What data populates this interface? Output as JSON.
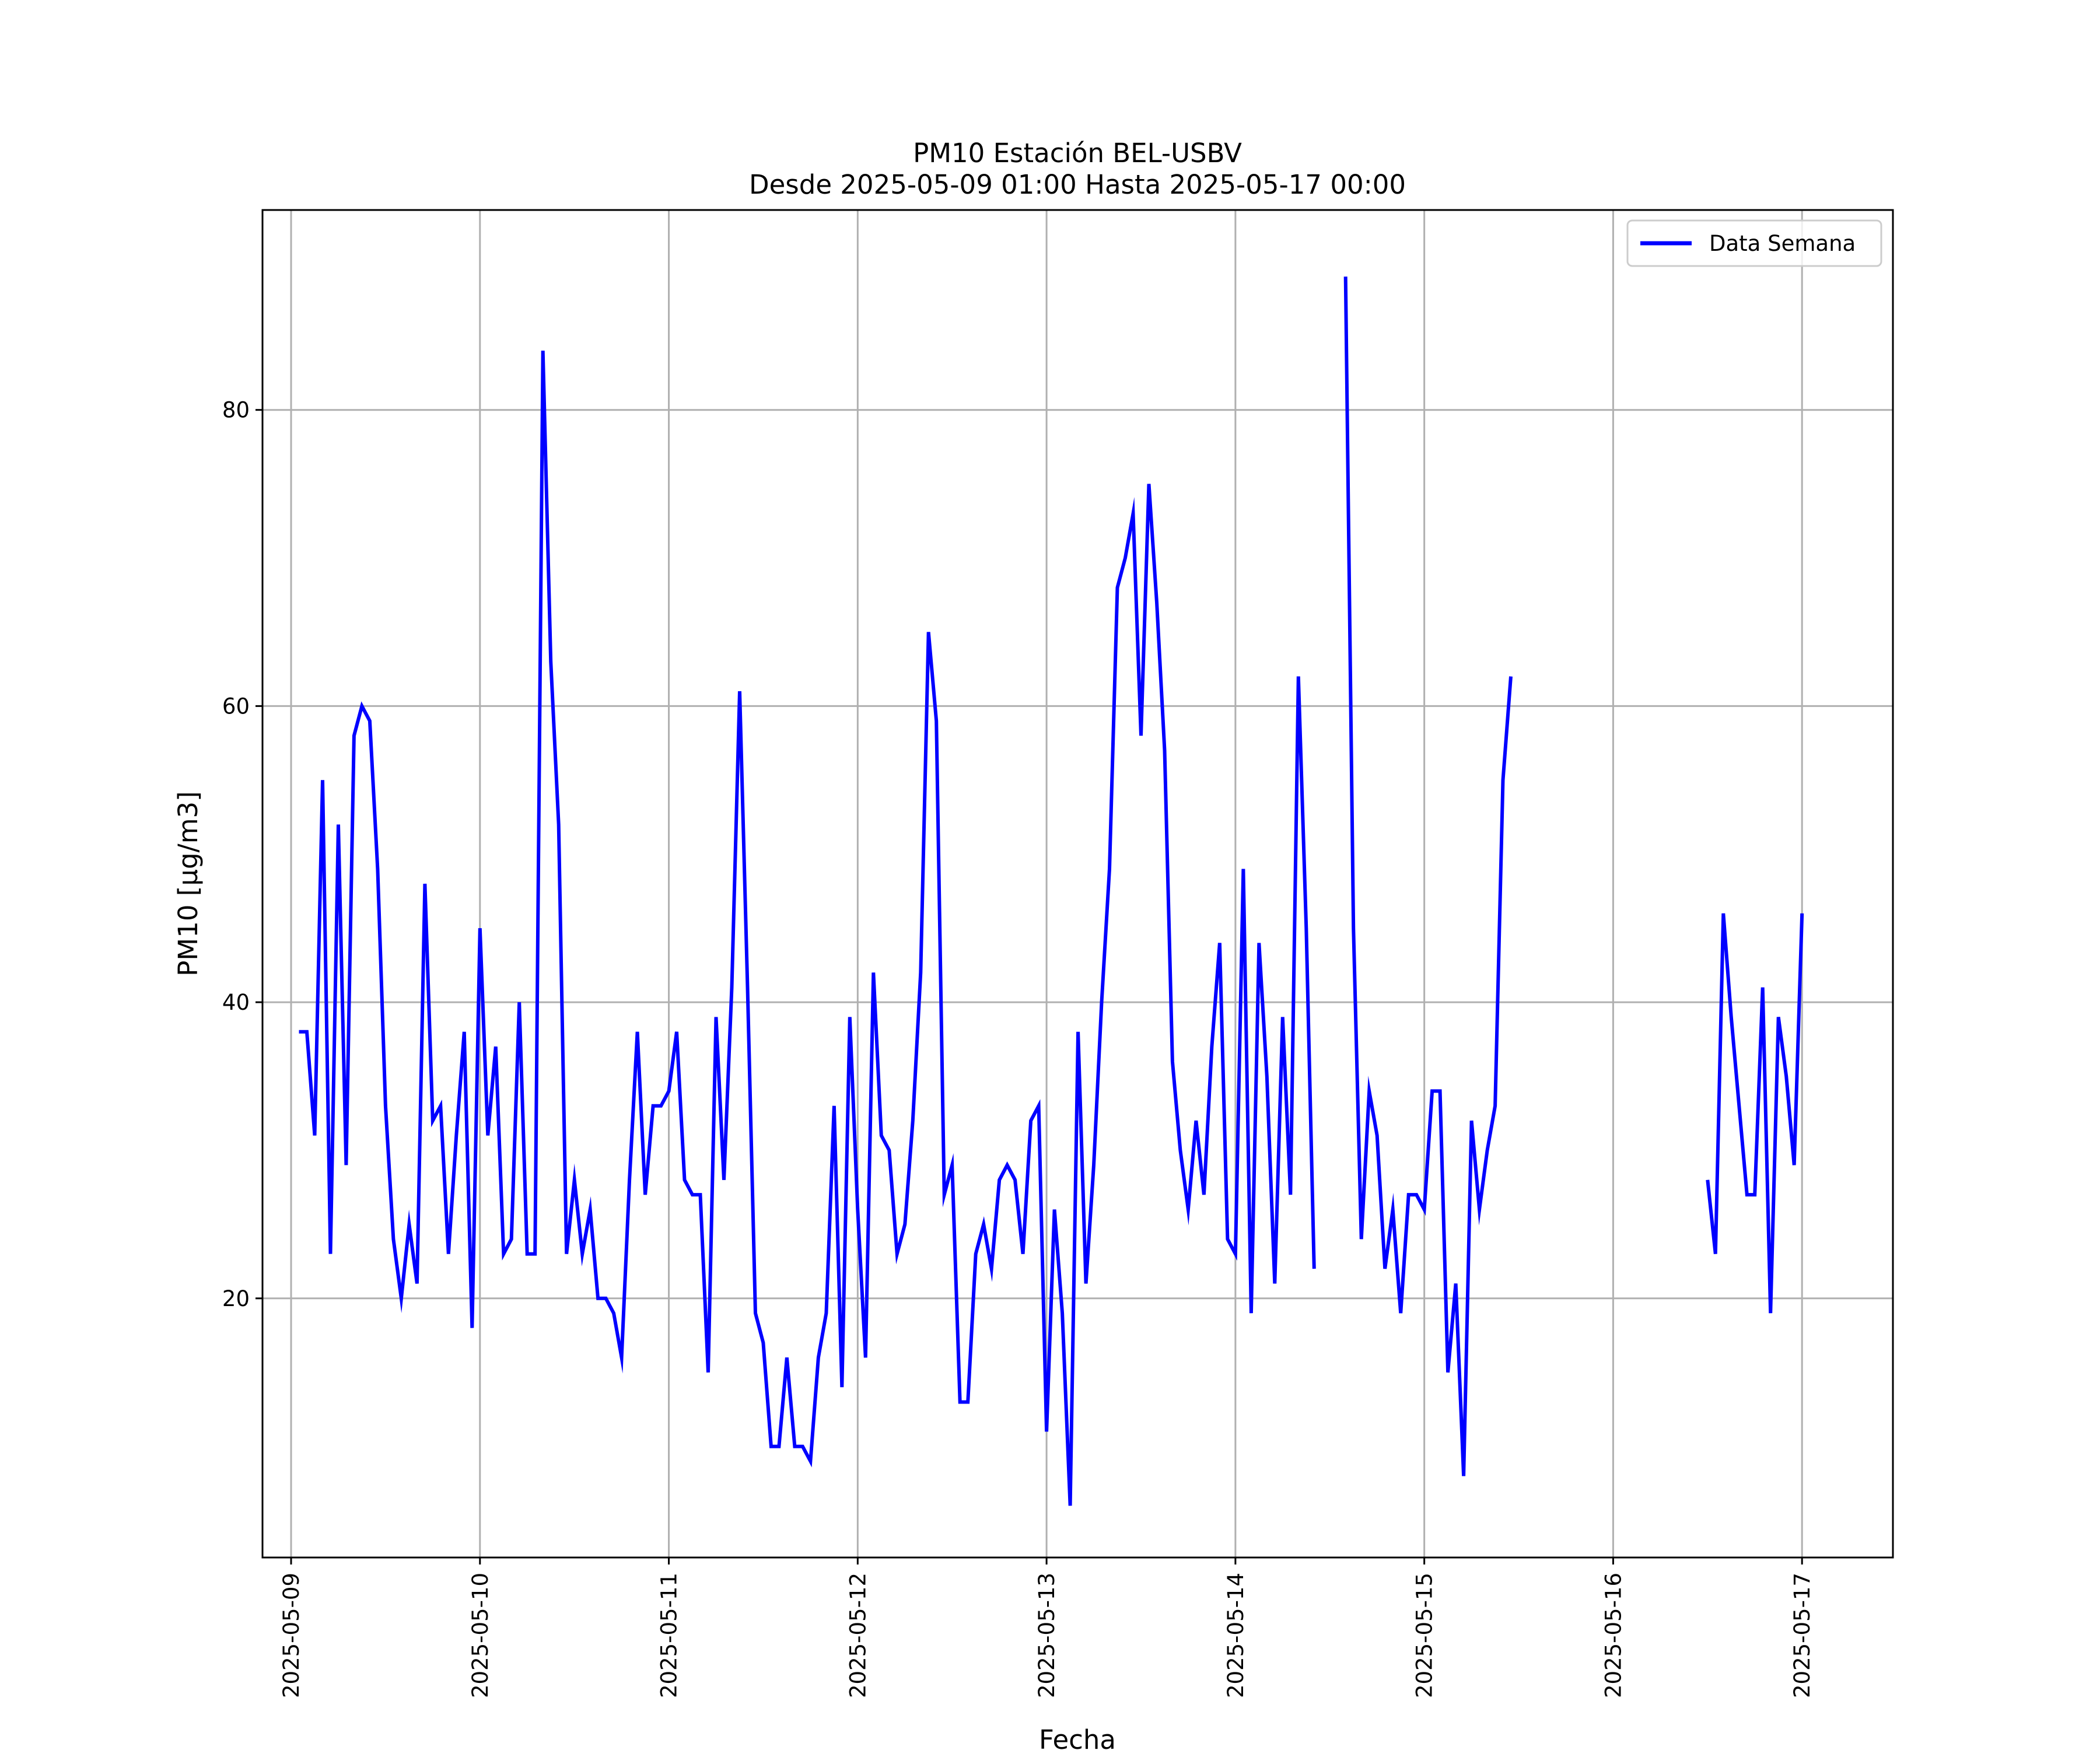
{
  "chart_data": {
    "type": "line",
    "title": "PM10 Estación BEL-USBV",
    "subtitle": "Desde 2025-05-09 01:00 Hasta 2025-05-17 00:00",
    "xlabel": "Fecha",
    "ylabel": "PM10 [μg/m3]",
    "x_ticks": [
      "2025-05-09",
      "2025-05-10",
      "2025-05-11",
      "2025-05-12",
      "2025-05-13",
      "2025-05-14",
      "2025-05-15",
      "2025-05-16",
      "2025-05-17"
    ],
    "xlim": [
      "2025-05-08 20:22",
      "2025-05-17 11:33"
    ],
    "y_ticks": [
      20,
      40,
      60,
      80
    ],
    "ylim": [
      2.5,
      93.5
    ],
    "grid": true,
    "legend_position": "upper right",
    "series": [
      {
        "name": "Data Semana",
        "color": "#0000ff",
        "points": [
          [
            "2025-05-09 01:00",
            38
          ],
          [
            "2025-05-09 02:00",
            38
          ],
          [
            "2025-05-09 03:00",
            31
          ],
          [
            "2025-05-09 04:00",
            55
          ],
          [
            "2025-05-09 05:00",
            23
          ],
          [
            "2025-05-09 06:00",
            52
          ],
          [
            "2025-05-09 07:00",
            29
          ],
          [
            "2025-05-09 08:00",
            58
          ],
          [
            "2025-05-09 09:00",
            60
          ],
          [
            "2025-05-09 10:00",
            59
          ],
          [
            "2025-05-09 11:00",
            49
          ],
          [
            "2025-05-09 12:00",
            33
          ],
          [
            "2025-05-09 13:00",
            24
          ],
          [
            "2025-05-09 14:00",
            20
          ],
          [
            "2025-05-09 15:00",
            25
          ],
          [
            "2025-05-09 16:00",
            21
          ],
          [
            "2025-05-09 17:00",
            48
          ],
          [
            "2025-05-09 18:00",
            32
          ],
          [
            "2025-05-09 19:00",
            33
          ],
          [
            "2025-05-09 20:00",
            23
          ],
          [
            "2025-05-09 21:00",
            31
          ],
          [
            "2025-05-09 22:00",
            38
          ],
          [
            "2025-05-09 23:00",
            18
          ],
          [
            "2025-05-10 00:00",
            45
          ],
          [
            "2025-05-10 01:00",
            31
          ],
          [
            "2025-05-10 02:00",
            37
          ],
          [
            "2025-05-10 03:00",
            23
          ],
          [
            "2025-05-10 04:00",
            24
          ],
          [
            "2025-05-10 05:00",
            40
          ],
          [
            "2025-05-10 06:00",
            23
          ],
          [
            "2025-05-10 07:00",
            23
          ],
          [
            "2025-05-10 08:00",
            84
          ],
          [
            "2025-05-10 09:00",
            63
          ],
          [
            "2025-05-10 10:00",
            52
          ],
          [
            "2025-05-10 11:00",
            23
          ],
          [
            "2025-05-10 12:00",
            28
          ],
          [
            "2025-05-10 13:00",
            23
          ],
          [
            "2025-05-10 14:00",
            26
          ],
          [
            "2025-05-10 15:00",
            20
          ],
          [
            "2025-05-10 16:00",
            20
          ],
          [
            "2025-05-10 17:00",
            19
          ],
          [
            "2025-05-10 18:00",
            16
          ],
          [
            "2025-05-10 19:00",
            28
          ],
          [
            "2025-05-10 20:00",
            38
          ],
          [
            "2025-05-10 21:00",
            27
          ],
          [
            "2025-05-10 22:00",
            33
          ],
          [
            "2025-05-10 23:00",
            33
          ],
          [
            "2025-05-11 00:00",
            34
          ],
          [
            "2025-05-11 01:00",
            38
          ],
          [
            "2025-05-11 02:00",
            28
          ],
          [
            "2025-05-11 03:00",
            27
          ],
          [
            "2025-05-11 04:00",
            27
          ],
          [
            "2025-05-11 05:00",
            15
          ],
          [
            "2025-05-11 06:00",
            39
          ],
          [
            "2025-05-11 07:00",
            28
          ],
          [
            "2025-05-11 08:00",
            41
          ],
          [
            "2025-05-11 09:00",
            61
          ],
          [
            "2025-05-11 10:00",
            41
          ],
          [
            "2025-05-11 11:00",
            19
          ],
          [
            "2025-05-11 12:00",
            17
          ],
          [
            "2025-05-11 13:00",
            10
          ],
          [
            "2025-05-11 14:00",
            10
          ],
          [
            "2025-05-11 15:00",
            16
          ],
          [
            "2025-05-11 16:00",
            10
          ],
          [
            "2025-05-11 17:00",
            10
          ],
          [
            "2025-05-11 18:00",
            9
          ],
          [
            "2025-05-11 19:00",
            16
          ],
          [
            "2025-05-11 20:00",
            19
          ],
          [
            "2025-05-11 21:00",
            33
          ],
          [
            "2025-05-11 22:00",
            14
          ],
          [
            "2025-05-11 23:00",
            39
          ],
          [
            "2025-05-12 00:00",
            26
          ],
          [
            "2025-05-12 01:00",
            16
          ],
          [
            "2025-05-12 02:00",
            42
          ],
          [
            "2025-05-12 03:00",
            31
          ],
          [
            "2025-05-12 04:00",
            30
          ],
          [
            "2025-05-12 05:00",
            23
          ],
          [
            "2025-05-12 06:00",
            25
          ],
          [
            "2025-05-12 07:00",
            32
          ],
          [
            "2025-05-12 08:00",
            42
          ],
          [
            "2025-05-12 09:00",
            65
          ],
          [
            "2025-05-12 10:00",
            59
          ],
          [
            "2025-05-12 11:00",
            27
          ],
          [
            "2025-05-12 12:00",
            29
          ],
          [
            "2025-05-12 13:00",
            13
          ],
          [
            "2025-05-12 14:00",
            13
          ],
          [
            "2025-05-12 15:00",
            23
          ],
          [
            "2025-05-12 16:00",
            25
          ],
          [
            "2025-05-12 17:00",
            22
          ],
          [
            "2025-05-12 18:00",
            28
          ],
          [
            "2025-05-12 19:00",
            29
          ],
          [
            "2025-05-12 20:00",
            28
          ],
          [
            "2025-05-12 21:00",
            23
          ],
          [
            "2025-05-12 22:00",
            32
          ],
          [
            "2025-05-12 23:00",
            33
          ],
          [
            "2025-05-13 00:00",
            11
          ],
          [
            "2025-05-13 01:00",
            26
          ],
          [
            "2025-05-13 02:00",
            19
          ],
          [
            "2025-05-13 03:00",
            6
          ],
          [
            "2025-05-13 04:00",
            38
          ],
          [
            "2025-05-13 05:00",
            21
          ],
          [
            "2025-05-13 06:00",
            29
          ],
          [
            "2025-05-13 07:00",
            40
          ],
          [
            "2025-05-13 08:00",
            49
          ],
          [
            "2025-05-13 09:00",
            68
          ],
          [
            "2025-05-13 10:00",
            70
          ],
          [
            "2025-05-13 11:00",
            73
          ],
          [
            "2025-05-13 12:00",
            58
          ],
          [
            "2025-05-13 13:00",
            75
          ],
          [
            "2025-05-13 14:00",
            67
          ],
          [
            "2025-05-13 15:00",
            57
          ],
          [
            "2025-05-13 16:00",
            36
          ],
          [
            "2025-05-13 17:00",
            30
          ],
          [
            "2025-05-13 18:00",
            26
          ],
          [
            "2025-05-13 19:00",
            32
          ],
          [
            "2025-05-13 20:00",
            27
          ],
          [
            "2025-05-13 21:00",
            37
          ],
          [
            "2025-05-13 22:00",
            44
          ],
          [
            "2025-05-13 23:00",
            24
          ],
          [
            "2025-05-14 00:00",
            23
          ],
          [
            "2025-05-14 01:00",
            49
          ],
          [
            "2025-05-14 02:00",
            19
          ],
          [
            "2025-05-14 03:00",
            44
          ],
          [
            "2025-05-14 04:00",
            35
          ],
          [
            "2025-05-14 05:00",
            21
          ],
          [
            "2025-05-14 06:00",
            39
          ],
          [
            "2025-05-14 07:00",
            27
          ],
          [
            "2025-05-14 08:00",
            62
          ],
          [
            "2025-05-14 09:00",
            45
          ],
          [
            "2025-05-14 10:00",
            22
          ],
          null,
          [
            "2025-05-14 14:00",
            89
          ],
          [
            "2025-05-14 15:00",
            45
          ],
          [
            "2025-05-14 16:00",
            24
          ],
          [
            "2025-05-14 17:00",
            34
          ],
          [
            "2025-05-14 18:00",
            31
          ],
          [
            "2025-05-14 19:00",
            22
          ],
          [
            "2025-05-14 20:00",
            26
          ],
          [
            "2025-05-14 21:00",
            19
          ],
          [
            "2025-05-14 22:00",
            27
          ],
          [
            "2025-05-14 23:00",
            27
          ],
          [
            "2025-05-15 00:00",
            26
          ],
          [
            "2025-05-15 01:00",
            34
          ],
          [
            "2025-05-15 02:00",
            34
          ],
          [
            "2025-05-15 03:00",
            15
          ],
          [
            "2025-05-15 04:00",
            21
          ],
          [
            "2025-05-15 05:00",
            8
          ],
          [
            "2025-05-15 06:00",
            32
          ],
          [
            "2025-05-15 07:00",
            26
          ],
          [
            "2025-05-15 08:00",
            30
          ],
          [
            "2025-05-15 09:00",
            33
          ],
          [
            "2025-05-15 10:00",
            55
          ],
          [
            "2025-05-15 11:00",
            62
          ],
          null,
          [
            "2025-05-16 12:00",
            28
          ],
          [
            "2025-05-16 13:00",
            23
          ],
          [
            "2025-05-16 14:00",
            46
          ],
          [
            "2025-05-16 15:00",
            39
          ],
          [
            "2025-05-16 16:00",
            33
          ],
          [
            "2025-05-16 17:00",
            27
          ],
          [
            "2025-05-16 18:00",
            27
          ],
          [
            "2025-05-16 19:00",
            41
          ],
          [
            "2025-05-16 20:00",
            19
          ],
          [
            "2025-05-16 21:00",
            39
          ],
          [
            "2025-05-16 22:00",
            35
          ],
          [
            "2025-05-16 23:00",
            29
          ],
          [
            "2025-05-17 00:00",
            46
          ]
        ]
      }
    ]
  }
}
